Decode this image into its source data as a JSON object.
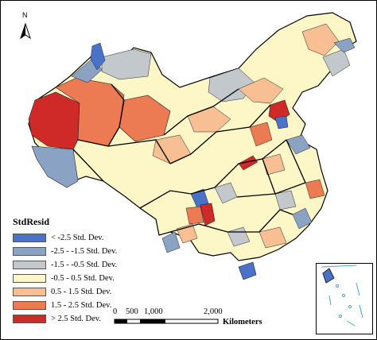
{
  "map": {
    "north_label": "N",
    "legend": {
      "title": "StdResid",
      "items": [
        {
          "label": "< -2.5 Std. Dev.",
          "color": "#4a72c8"
        },
        {
          "label": "-2.5 - -1.5 Std. Dev.",
          "color": "#8aa2c4"
        },
        {
          "label": "-1.5 - -0.5 Std. Dev.",
          "color": "#c2c8cc"
        },
        {
          "label": "-0.5 - 0.5 Std. Dev.",
          "color": "#fdf7c8"
        },
        {
          "label": "0.5 - 1.5 Std. Dev.",
          "color": "#f8c092"
        },
        {
          "label": "1.5 - 2.5 Std. Dev.",
          "color": "#ec7a52"
        },
        {
          "label": "> 2.5 Std. Dev.",
          "color": "#d02a28"
        }
      ]
    },
    "scale": {
      "ticks": [
        "0",
        "500",
        "1,000",
        "2,000"
      ],
      "unit": "Kilometers"
    }
  }
}
